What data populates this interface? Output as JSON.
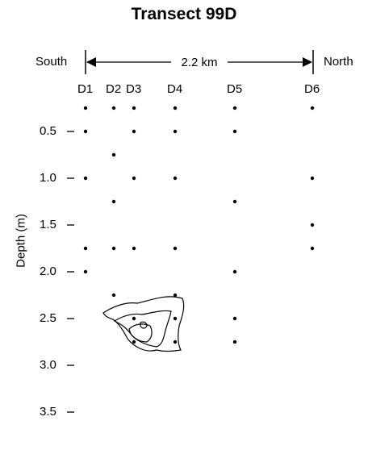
{
  "title": "Transect 99D",
  "south_label": "South",
  "north_label": "North",
  "distance_label": "2.2 km",
  "y_axis_label": "Depth (m)",
  "depth_ticks": [
    "0.5",
    "1.0",
    "1.5",
    "2.0",
    "2.5",
    "3.0",
    "3.5"
  ],
  "stations": [
    {
      "id": "D1",
      "label": "D1"
    },
    {
      "id": "D2",
      "label": "D2"
    },
    {
      "id": "D3",
      "label": "D3"
    },
    {
      "id": "D4",
      "label": "D4"
    },
    {
      "id": "D5",
      "label": "D5"
    },
    {
      "id": "D6",
      "label": "D6"
    }
  ],
  "sample_points": [
    {
      "station": "D1",
      "depths": [
        0.25,
        0.5,
        1.0,
        1.75,
        2.0
      ]
    },
    {
      "station": "D2",
      "depths": [
        0.25,
        0.75,
        1.25,
        1.75,
        2.25
      ]
    },
    {
      "station": "D3",
      "depths": [
        0.25,
        0.5,
        1.0,
        1.75,
        2.5,
        2.75
      ]
    },
    {
      "station": "D4",
      "depths": [
        0.25,
        0.5,
        1.0,
        1.75,
        2.25,
        2.5,
        2.75
      ]
    },
    {
      "station": "D5",
      "depths": [
        0.25,
        0.5,
        1.25,
        2.0,
        2.5,
        2.75
      ]
    },
    {
      "station": "D6",
      "depths": [
        0.25,
        1.0,
        1.5,
        1.75
      ]
    }
  ]
}
